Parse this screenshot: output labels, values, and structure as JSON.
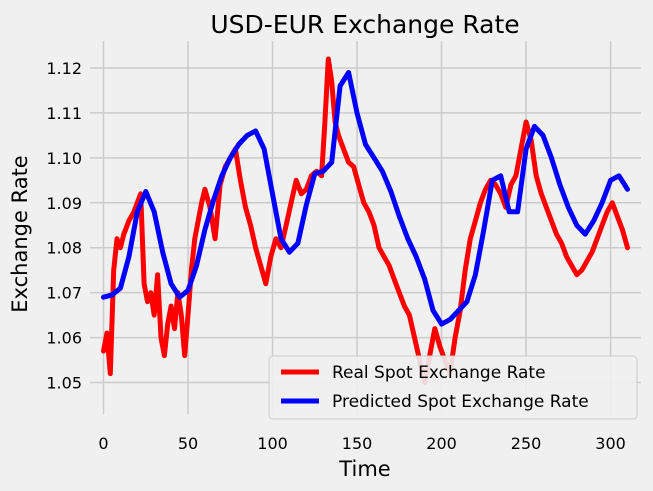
{
  "chart_data": {
    "type": "line",
    "title": "USD-EUR Exchange Rate",
    "xlabel": "Time",
    "ylabel": "Exchange Rate",
    "xlim": [
      -8,
      318
    ],
    "ylim": [
      1.043,
      1.126
    ],
    "xticks": [
      0,
      50,
      100,
      150,
      200,
      250,
      300
    ],
    "yticks": [
      1.05,
      1.06,
      1.07,
      1.08,
      1.09,
      1.1,
      1.11,
      1.12
    ],
    "ytick_labels": [
      "1.05",
      "1.06",
      "1.07",
      "1.08",
      "1.09",
      "1.10",
      "1.11",
      "1.12"
    ],
    "grid": true,
    "legend_position": "lower-right",
    "series": [
      {
        "name": "Real Spot Exchange Rate",
        "color": "#ff0000",
        "x": [
          0,
          2,
          4,
          6,
          8,
          10,
          12,
          15,
          18,
          20,
          22,
          24,
          26,
          28,
          30,
          32,
          34,
          36,
          38,
          40,
          42,
          44,
          46,
          48,
          50,
          52,
          54,
          56,
          58,
          60,
          63,
          66,
          69,
          72,
          75,
          78,
          81,
          84,
          87,
          90,
          93,
          96,
          99,
          102,
          105,
          108,
          111,
          114,
          117,
          120,
          123,
          126,
          129,
          131,
          133,
          135,
          137,
          139,
          141,
          143,
          145,
          148,
          151,
          154,
          157,
          160,
          163,
          166,
          169,
          172,
          175,
          178,
          181,
          184,
          187,
          190,
          193,
          196,
          199,
          202,
          205,
          208,
          211,
          214,
          217,
          220,
          223,
          226,
          229,
          232,
          235,
          238,
          241,
          244,
          247,
          250,
          253,
          256,
          259,
          262,
          265,
          268,
          271,
          274,
          277,
          280,
          283,
          286,
          289,
          292,
          295,
          298,
          301,
          304,
          307,
          310
        ],
        "y": [
          1.057,
          1.061,
          1.052,
          1.075,
          1.082,
          1.08,
          1.083,
          1.086,
          1.088,
          1.09,
          1.092,
          1.072,
          1.068,
          1.07,
          1.065,
          1.074,
          1.06,
          1.056,
          1.063,
          1.067,
          1.062,
          1.07,
          1.065,
          1.056,
          1.065,
          1.075,
          1.082,
          1.086,
          1.09,
          1.093,
          1.089,
          1.082,
          1.094,
          1.098,
          1.1,
          1.102,
          1.095,
          1.089,
          1.085,
          1.08,
          1.076,
          1.072,
          1.078,
          1.082,
          1.08,
          1.085,
          1.09,
          1.095,
          1.092,
          1.093,
          1.096,
          1.097,
          1.096,
          1.108,
          1.122,
          1.117,
          1.108,
          1.105,
          1.103,
          1.101,
          1.099,
          1.098,
          1.094,
          1.09,
          1.088,
          1.085,
          1.08,
          1.078,
          1.076,
          1.073,
          1.07,
          1.067,
          1.065,
          1.06,
          1.055,
          1.05,
          1.056,
          1.062,
          1.058,
          1.055,
          1.052,
          1.06,
          1.066,
          1.075,
          1.082,
          1.086,
          1.09,
          1.093,
          1.095,
          1.094,
          1.092,
          1.089,
          1.094,
          1.096,
          1.102,
          1.108,
          1.104,
          1.096,
          1.092,
          1.089,
          1.086,
          1.083,
          1.081,
          1.078,
          1.076,
          1.074,
          1.075,
          1.077,
          1.079,
          1.082,
          1.085,
          1.088,
          1.09,
          1.087,
          1.084,
          1.08
        ]
      },
      {
        "name": "Predicted Spot Exchange Rate",
        "color": "#0000ff",
        "x": [
          0,
          5,
          10,
          15,
          20,
          25,
          30,
          35,
          40,
          45,
          50,
          55,
          60,
          65,
          70,
          75,
          80,
          85,
          90,
          95,
          100,
          105,
          110,
          115,
          120,
          125,
          130,
          135,
          140,
          145,
          150,
          155,
          160,
          165,
          170,
          175,
          180,
          185,
          190,
          195,
          200,
          205,
          210,
          215,
          220,
          225,
          230,
          235,
          240,
          245,
          250,
          255,
          260,
          265,
          270,
          275,
          280,
          285,
          290,
          295,
          300,
          305,
          310
        ],
        "y": [
          1.069,
          1.0695,
          1.071,
          1.078,
          1.088,
          1.0925,
          1.088,
          1.079,
          1.072,
          1.069,
          1.0705,
          1.076,
          1.084,
          1.0905,
          1.096,
          1.1,
          1.103,
          1.105,
          1.106,
          1.102,
          1.092,
          1.082,
          1.079,
          1.081,
          1.0895,
          1.0965,
          1.097,
          1.099,
          1.116,
          1.119,
          1.11,
          1.103,
          1.1,
          1.097,
          1.0925,
          1.087,
          1.082,
          1.078,
          1.073,
          1.066,
          1.063,
          1.064,
          1.066,
          1.068,
          1.074,
          1.084,
          1.095,
          1.096,
          1.088,
          1.088,
          1.102,
          1.107,
          1.105,
          1.1,
          1.094,
          1.089,
          1.085,
          1.083,
          1.086,
          1.09,
          1.095,
          1.096,
          1.093
        ]
      }
    ]
  }
}
